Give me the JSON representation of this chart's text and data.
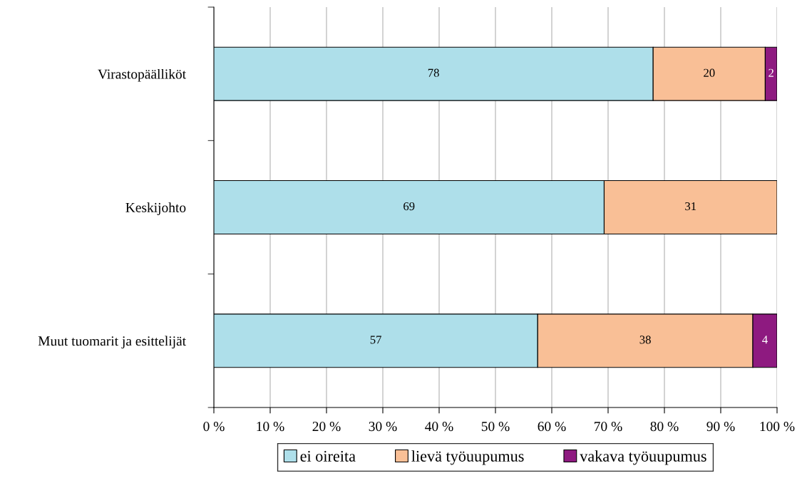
{
  "chart_data": {
    "type": "bar",
    "orientation": "horizontal",
    "stacked": true,
    "categories": [
      "Virastopäälliköt",
      "Keskijohto",
      "Muut tuomarit ja esittelijät"
    ],
    "series": [
      {
        "name": "ei oireita",
        "color": "#aedfea",
        "values": [
          78.0,
          69.3,
          57.5
        ],
        "value_labels": [
          "78",
          "69",
          "57"
        ]
      },
      {
        "name": "lievä työuupumus",
        "color": "#f9bf96",
        "values": [
          19.9,
          30.7,
          38.2
        ],
        "value_labels": [
          "20",
          "31",
          "38"
        ]
      },
      {
        "name": "vakava työuupumus",
        "color": "#8e1a80",
        "values": [
          2.1,
          null,
          4.3
        ],
        "value_labels": [
          "2",
          null,
          "4"
        ]
      }
    ],
    "xlim": [
      0,
      100
    ],
    "xticks": [
      {
        "value": 0,
        "label": "0 %"
      },
      {
        "value": 10,
        "label": "10 %"
      },
      {
        "value": 20,
        "label": "20 %"
      },
      {
        "value": 30,
        "label": "30 %"
      },
      {
        "value": 40,
        "label": "40 %"
      },
      {
        "value": 50,
        "label": "50 %"
      },
      {
        "value": 60,
        "label": "60 %"
      },
      {
        "value": 70,
        "label": "70 %"
      },
      {
        "value": 80,
        "label": "80 %"
      },
      {
        "value": 90,
        "label": "90 %"
      },
      {
        "value": 100,
        "label": "100 %"
      }
    ],
    "grid": "x",
    "legend": "bottom"
  }
}
